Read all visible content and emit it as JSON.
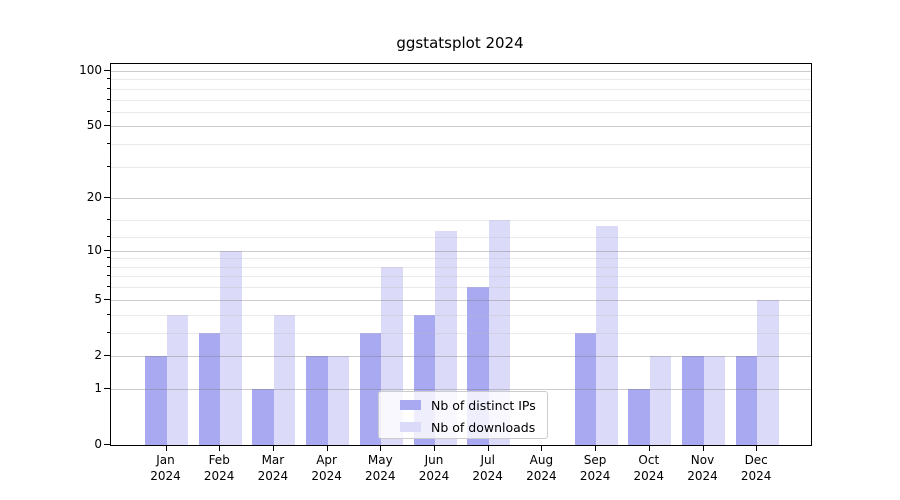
{
  "title": "ggstatsplot 2024",
  "chart_data": {
    "type": "bar",
    "title": "ggstatsplot 2024",
    "xlabel": "",
    "ylabel": "",
    "year": "2024",
    "categories": [
      "Jan 2024",
      "Feb 2024",
      "Mar 2024",
      "Apr 2024",
      "May 2024",
      "Jun 2024",
      "Jul 2024",
      "Aug 2024",
      "Sep 2024",
      "Oct 2024",
      "Nov 2024",
      "Dec 2024"
    ],
    "months": [
      "Jan",
      "Feb",
      "Mar",
      "Apr",
      "May",
      "Jun",
      "Jul",
      "Aug",
      "Sep",
      "Oct",
      "Nov",
      "Dec"
    ],
    "series": [
      {
        "name": "Nb of distinct IPs",
        "color": "#a9a9f2",
        "values": [
          2,
          3,
          1,
          2,
          3,
          4,
          6,
          0,
          3,
          1,
          2,
          2
        ]
      },
      {
        "name": "Nb of downloads",
        "color": "#dbdbf9",
        "values": [
          4,
          10,
          4,
          2,
          8,
          13,
          15,
          0,
          14,
          2,
          2,
          5
        ]
      }
    ],
    "y_scale": "log1p",
    "y_ticks": [
      0,
      1,
      2,
      5,
      10,
      20,
      50,
      100
    ],
    "y_minor_ticks": [
      3,
      4,
      6,
      7,
      8,
      9,
      12,
      15,
      30,
      40,
      60,
      70,
      80,
      90
    ],
    "ylim": [
      0,
      109
    ],
    "grid": "horizontal-major-and-minor",
    "legend_position": "lower-center-inside",
    "colors": {
      "axis": "#000000",
      "grid_major": "#cccccc",
      "grid_minor": "#ececec",
      "legend_border": "#cccccc"
    }
  },
  "legend": {
    "items": [
      {
        "label": "Nb of distinct IPs"
      },
      {
        "label": "Nb of downloads"
      }
    ]
  }
}
